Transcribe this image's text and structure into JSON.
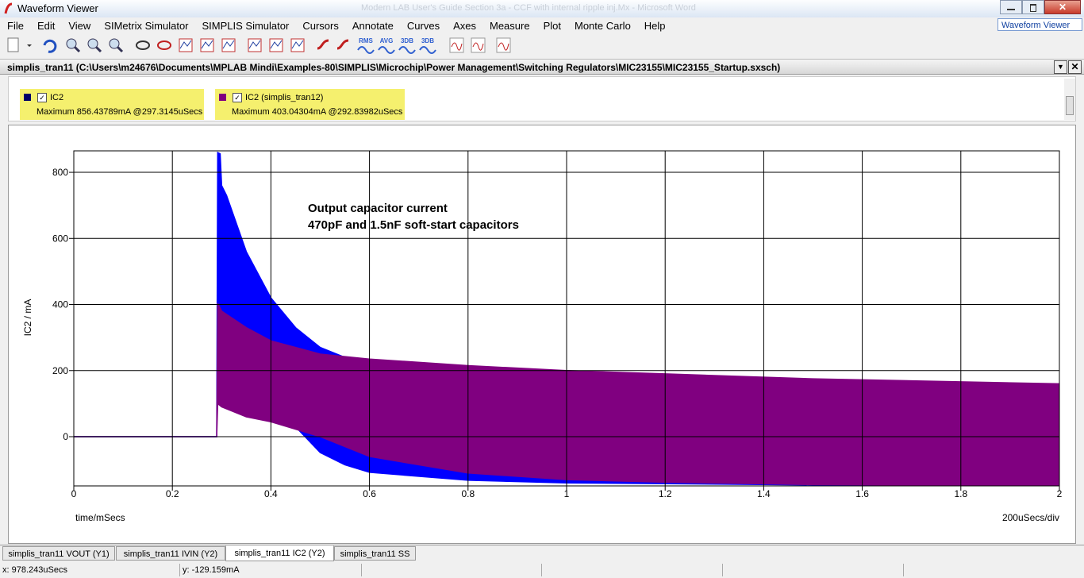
{
  "window": {
    "title": "Waveform Viewer",
    "background_title": "Modern LAB User's Guide Section 3a - CCF with internal ripple inj.Mx - Microsoft Word"
  },
  "menu": [
    "File",
    "Edit",
    "View",
    "SIMetrix Simulator",
    "SIMPLIS Simulator",
    "Cursors",
    "Annotate",
    "Curves",
    "Axes",
    "Measure",
    "Plot",
    "Monte Carlo",
    "Help"
  ],
  "toolbar_labels": [
    "RMS",
    "AVG",
    "3DB",
    "3DB"
  ],
  "view_selector": "Waveform Viewer",
  "header": "simplis_tran11 (C:\\Users\\m24676\\Documents\\MPLAB Mindi\\Examples-80\\SIMPLIS\\Microchip\\Power Management\\Switching Regulators\\MIC23155\\MIC23155_Startup.sxsch)",
  "chart_data": {
    "type": "envelope",
    "ylabel": "IC2 / mA",
    "xlabel": "time/mSecs",
    "x_scale_label": "200uSecs/div",
    "annotations": [
      "Output capacitor current",
      "470pF and 1.5nF soft-start capacitors"
    ],
    "xlim": [
      0,
      2
    ],
    "xticks": [
      0,
      0.2,
      0.4,
      0.6,
      0.8,
      1,
      1.2,
      1.4,
      1.6,
      1.8,
      2
    ],
    "ylim": [
      -149,
      865
    ],
    "yticks": [
      0,
      200,
      400,
      600,
      800
    ],
    "grid": true,
    "series": [
      {
        "name": "IC2",
        "measure": "Maximum  856.43789mA @297.3145uSecs",
        "color": "#0000ff",
        "legend_color": "#000066",
        "x": [
          0,
          0.29,
          0.292,
          0.297,
          0.3,
          0.31,
          0.35,
          0.4,
          0.45,
          0.5,
          0.55,
          0.6,
          0.8,
          1,
          1.5,
          2
        ],
        "upper": [
          0,
          0,
          860,
          856,
          760,
          730,
          560,
          420,
          330,
          270,
          240,
          220,
          205,
          190,
          170,
          150
        ],
        "lower": [
          0,
          0,
          400,
          390,
          380,
          360,
          320,
          150,
          30,
          -48,
          -85,
          -108,
          -132,
          -140,
          -146,
          -148
        ]
      },
      {
        "name": "IC2 (simplis_tran12)",
        "measure": "Maximum  403.04304mA @292.83982uSecs",
        "color": "#800080",
        "legend_color": "#800080",
        "x": [
          0,
          0.29,
          0.292,
          0.3,
          0.35,
          0.4,
          0.5,
          0.6,
          0.8,
          1,
          1.2,
          1.5,
          2
        ],
        "upper": [
          0,
          0,
          403,
          380,
          330,
          290,
          250,
          235,
          215,
          200,
          190,
          175,
          160
        ],
        "lower": [
          0,
          0,
          100,
          90,
          60,
          45,
          0,
          -60,
          -110,
          -130,
          -138,
          -145,
          -148
        ]
      }
    ]
  },
  "tabs": [
    "simplis_tran11 VOUT (Y1)",
    "simplis_tran11 IVIN (Y2)",
    "simplis_tran11 IC2 (Y2)",
    "simplis_tran11 SS"
  ],
  "status": {
    "x": "x: 978.243uSecs",
    "y": "y: -129.159mA"
  }
}
